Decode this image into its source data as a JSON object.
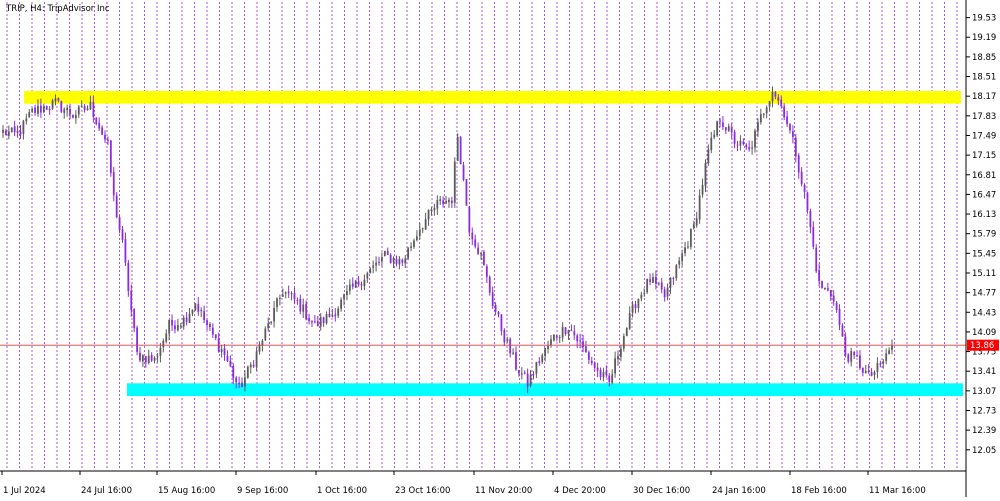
{
  "window": {
    "title": "TRIP, H4:  TripAdvisor Inc"
  },
  "colors": {
    "background": "#ffffff",
    "grid": "#9b30c8",
    "bull": "#5a5a5a",
    "bear": "#8a2be2",
    "resistance_zone": "#ffff00",
    "support_zone": "#00ffff",
    "price_line": "#d84040",
    "price_label_bg": "#ff0000",
    "axis": "#000000"
  },
  "chart_data": {
    "type": "candlestick",
    "title": "TRIP, H4:  TripAdvisor Inc",
    "symbol": "TRIP",
    "timeframe": "H4",
    "ylim": [
      11.7,
      19.8
    ],
    "y_ticks": [
      "19.53",
      "19.19",
      "18.85",
      "18.51",
      "18.17",
      "17.83",
      "17.49",
      "17.15",
      "16.81",
      "16.47",
      "16.13",
      "15.79",
      "15.45",
      "15.11",
      "14.77",
      "14.43",
      "14.09",
      "13.75",
      "13.41",
      "13.07",
      "12.73",
      "12.39",
      "12.05"
    ],
    "x_ticks": [
      "1 Jul 2024",
      "24 Jul 16:00",
      "15 Aug 16:00",
      "9 Sep 16:00",
      "1 Oct 16:00",
      "23 Oct 16:00",
      "11 Nov 20:00",
      "4 Dec 20:00",
      "30 Dec 16:00",
      "24 Jan 16:00",
      "18 Feb 16:00",
      "11 Mar 16:00"
    ],
    "current_price": "13.86",
    "zones": [
      {
        "name": "resistance",
        "low": 18.04,
        "high": 18.26
      },
      {
        "name": "support",
        "low": 12.98,
        "high": 13.2
      }
    ],
    "price_path": [
      {
        "i": 0,
        "p": 17.55
      },
      {
        "i": 5,
        "p": 17.5
      },
      {
        "i": 10,
        "p": 17.9
      },
      {
        "i": 18,
        "p": 18.05
      },
      {
        "i": 24,
        "p": 17.85
      },
      {
        "i": 30,
        "p": 18.0
      },
      {
        "i": 36,
        "p": 17.3
      },
      {
        "i": 38,
        "p": 16.4
      },
      {
        "i": 41,
        "p": 15.6
      },
      {
        "i": 46,
        "p": 13.7
      },
      {
        "i": 52,
        "p": 13.6
      },
      {
        "i": 57,
        "p": 14.2
      },
      {
        "i": 62,
        "p": 14.3
      },
      {
        "i": 66,
        "p": 14.6
      },
      {
        "i": 71,
        "p": 14.1
      },
      {
        "i": 76,
        "p": 13.7
      },
      {
        "i": 81,
        "p": 13.1
      },
      {
        "i": 86,
        "p": 13.6
      },
      {
        "i": 91,
        "p": 14.2
      },
      {
        "i": 96,
        "p": 14.8
      },
      {
        "i": 101,
        "p": 14.6
      },
      {
        "i": 107,
        "p": 14.2
      },
      {
        "i": 113,
        "p": 14.4
      },
      {
        "i": 119,
        "p": 14.8
      },
      {
        "i": 125,
        "p": 15.1
      },
      {
        "i": 131,
        "p": 15.4
      },
      {
        "i": 137,
        "p": 15.3
      },
      {
        "i": 143,
        "p": 15.9
      },
      {
        "i": 149,
        "p": 16.3
      },
      {
        "i": 154,
        "p": 16.4
      },
      {
        "i": 156,
        "p": 17.5
      },
      {
        "i": 160,
        "p": 15.9
      },
      {
        "i": 164,
        "p": 15.4
      },
      {
        "i": 168,
        "p": 14.6
      },
      {
        "i": 172,
        "p": 14.0
      },
      {
        "i": 176,
        "p": 13.5
      },
      {
        "i": 180,
        "p": 13.2
      },
      {
        "i": 184,
        "p": 13.6
      },
      {
        "i": 189,
        "p": 14.0
      },
      {
        "i": 194,
        "p": 14.2
      },
      {
        "i": 199,
        "p": 13.8
      },
      {
        "i": 204,
        "p": 13.4
      },
      {
        "i": 208,
        "p": 13.2
      },
      {
        "i": 212,
        "p": 13.9
      },
      {
        "i": 217,
        "p": 14.6
      },
      {
        "i": 222,
        "p": 15.0
      },
      {
        "i": 227,
        "p": 14.7
      },
      {
        "i": 232,
        "p": 15.3
      },
      {
        "i": 237,
        "p": 15.9
      },
      {
        "i": 242,
        "p": 17.2
      },
      {
        "i": 246,
        "p": 17.8
      },
      {
        "i": 251,
        "p": 17.4
      },
      {
        "i": 256,
        "p": 17.2
      },
      {
        "i": 260,
        "p": 17.8
      },
      {
        "i": 264,
        "p": 18.3
      },
      {
        "i": 268,
        "p": 17.9
      },
      {
        "i": 272,
        "p": 17.2
      },
      {
        "i": 276,
        "p": 16.2
      },
      {
        "i": 280,
        "p": 14.9
      },
      {
        "i": 285,
        "p": 14.7
      },
      {
        "i": 289,
        "p": 13.7
      },
      {
        "i": 293,
        "p": 13.6
      },
      {
        "i": 297,
        "p": 13.3
      },
      {
        "i": 301,
        "p": 13.5
      },
      {
        "i": 305,
        "p": 13.85
      }
    ],
    "grid": "vertical dashed",
    "legend": "none"
  }
}
